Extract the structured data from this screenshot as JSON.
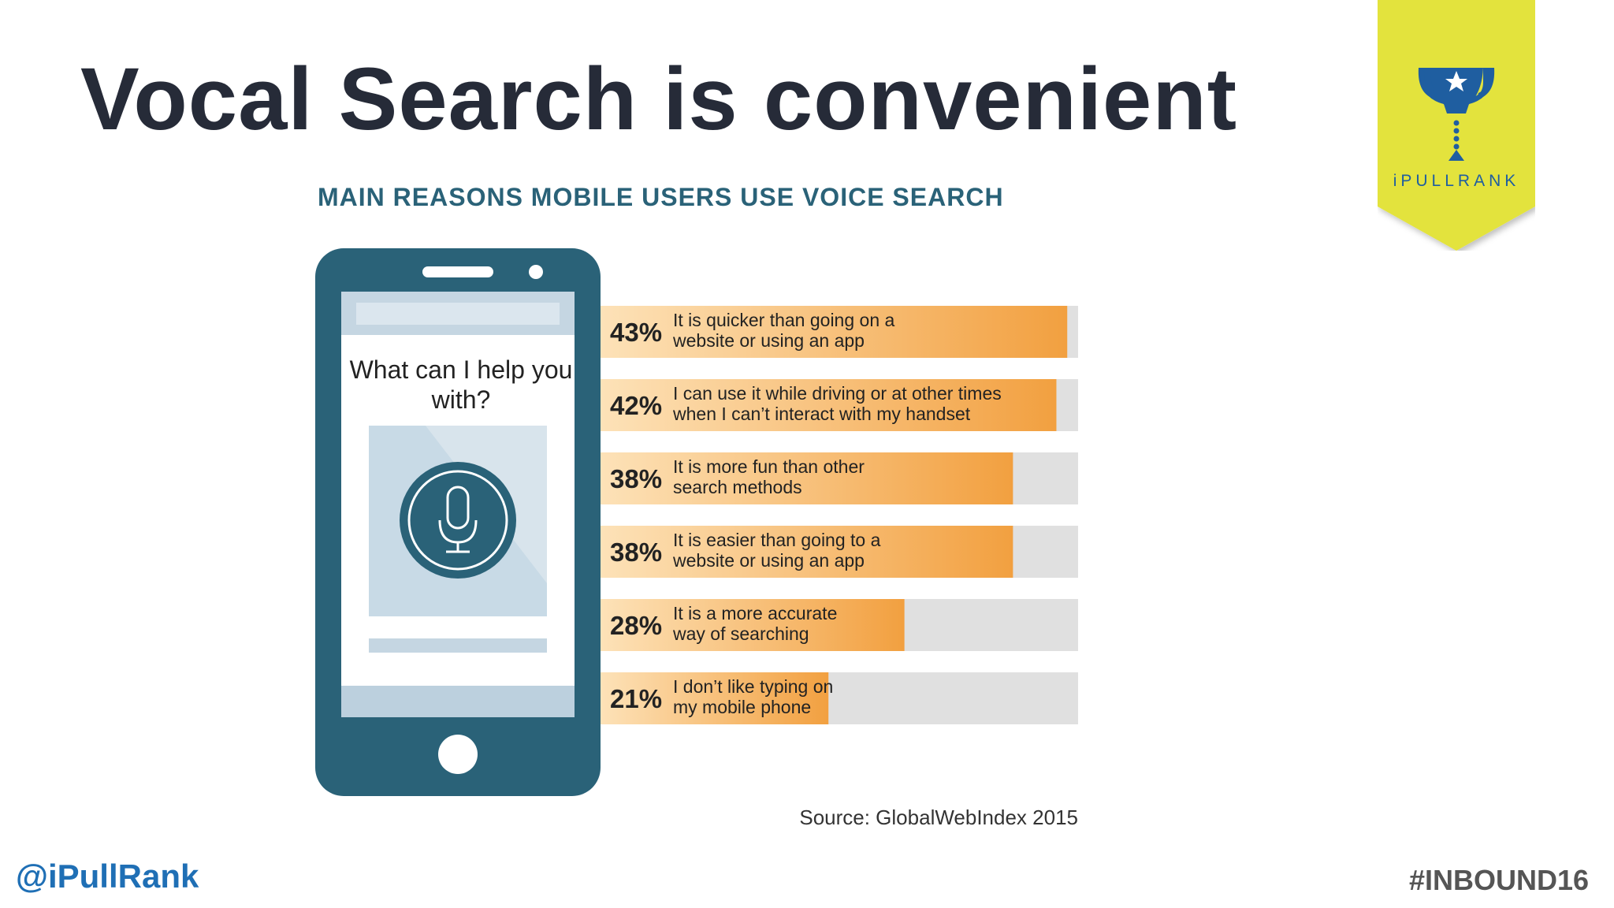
{
  "slide": {
    "title": "Vocal Search is convenient",
    "handle": "@iPullRank",
    "hashtag": "#INBOUND16"
  },
  "badge": {
    "label": "iPULLRANK",
    "icon": "trophy-icon",
    "color": "#e3e33d",
    "icon_color": "#1f5ea0"
  },
  "phone": {
    "prompt": "What can I help you with?",
    "icon": "microphone-icon",
    "body_color": "#2a6278",
    "screen_color": "#dbe6ee"
  },
  "chart_data": {
    "type": "bar",
    "orientation": "horizontal",
    "title": "MAIN REASONS MOBILE USERS USE VOICE SEARCH",
    "source": "Source: GlobalWebIndex 2015",
    "xlim": [
      0,
      44
    ],
    "unit": "%",
    "colors": {
      "bar_start": "#fde2b8",
      "bar_end": "#f2a040",
      "track": "#e0e0e0"
    },
    "categories": [
      {
        "value": 43,
        "label": "43%",
        "line1": "It is quicker than going on a",
        "line2": "website or using an app"
      },
      {
        "value": 42,
        "label": "42%",
        "line1": "I can use it while driving or at other times",
        "line2": "when I can’t interact with my handset"
      },
      {
        "value": 38,
        "label": "38%",
        "line1": "It is more fun than other",
        "line2": "search methods"
      },
      {
        "value": 38,
        "label": "38%",
        "line1": "It is easier than going to a",
        "line2": "website or using an app"
      },
      {
        "value": 28,
        "label": "28%",
        "line1": "It is a more accurate",
        "line2": "way of searching"
      },
      {
        "value": 21,
        "label": "21%",
        "line1": "I don’t like typing on",
        "line2": "my mobile phone"
      }
    ]
  }
}
